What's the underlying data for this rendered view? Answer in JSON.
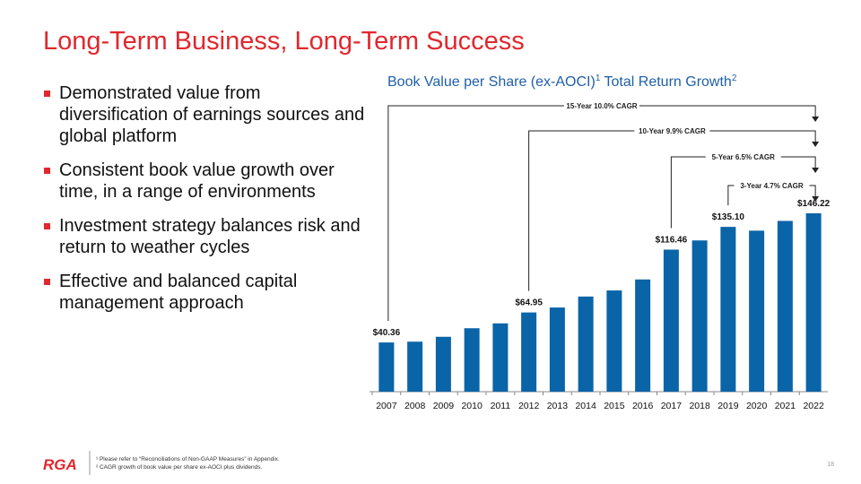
{
  "header": {
    "title": "Long-Term Business, Long-Term Success"
  },
  "bullets": [
    "Demonstrated value from diversification of earnings sources and global platform",
    "Consistent book value growth over time, in a range of environments",
    "Investment strategy balances risk and return to weather cycles",
    "Effective and balanced capital management approach"
  ],
  "chart_data": {
    "type": "bar",
    "title": {
      "text": "Book Value per Share (ex-AOCI)",
      "sup1": "1",
      "text2": " Total Return Growth",
      "sup2": "2"
    },
    "categories": [
      "2007",
      "2008",
      "2009",
      "2010",
      "2011",
      "2012",
      "2013",
      "2014",
      "2015",
      "2016",
      "2017",
      "2018",
      "2019",
      "2020",
      "2021",
      "2022"
    ],
    "values": [
      40.36,
      41,
      45,
      52,
      56,
      64.95,
      69,
      78,
      83,
      92,
      116.46,
      124,
      135.1,
      132,
      140,
      146.22
    ],
    "value_labels": [
      "$40.36",
      null,
      null,
      null,
      null,
      "$64.95",
      null,
      null,
      null,
      null,
      "$116.46",
      null,
      "$135.10",
      null,
      null,
      "$146.22"
    ],
    "color": "#0a64a8",
    "annotations": [
      "15-Year 10.0% CAGR",
      "10-Year 9.9% CAGR",
      "5-Year 6.5% CAGR",
      "3-Year 4.7% CAGR"
    ]
  },
  "footer": {
    "logo": "RGA",
    "notes": [
      "¹ Please refer to “Reconciliations of Non-GAAP Measures” in Appendix.",
      "² CAGR growth of book value per share ex-AOCI plus dividends."
    ],
    "page": "18"
  }
}
